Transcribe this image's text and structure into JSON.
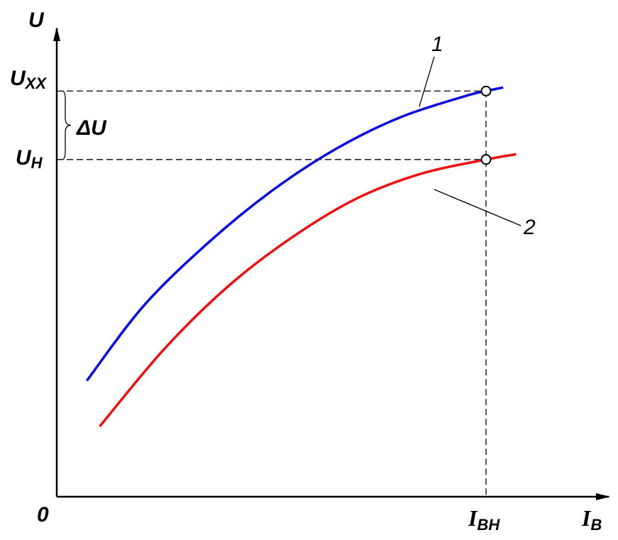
{
  "chart_data": {
    "type": "line",
    "title": "",
    "xlabel": {
      "main": "I",
      "sub": "B"
    },
    "ylabel": "U",
    "origin_label": "0",
    "xlim": [
      0,
      1.3
    ],
    "ylim": [
      0,
      1.3
    ],
    "grid": false,
    "legend": "none",
    "series": [
      {
        "name": "1",
        "color": "#0a0adc",
        "x": [
          0.07,
          0.2,
          0.35,
          0.5,
          0.65,
          0.8,
          0.95,
          1.0,
          1.04
        ],
        "y": [
          0.33,
          0.54,
          0.72,
          0.87,
          0.99,
          1.08,
          1.14,
          1.155,
          1.165
        ]
      },
      {
        "name": "2",
        "color": "#e81010",
        "x": [
          0.1,
          0.25,
          0.4,
          0.55,
          0.7,
          0.85,
          1.0,
          1.07
        ],
        "y": [
          0.2,
          0.42,
          0.6,
          0.74,
          0.85,
          0.92,
          0.96,
          0.975
        ]
      }
    ],
    "reference_lines": {
      "u_xx": {
        "label_main": "U",
        "label_sub": "XX",
        "value": 1.155
      },
      "u_n": {
        "label_main": "U",
        "label_sub": "H",
        "value": 0.96
      },
      "i_vn": {
        "label_main": "I",
        "label_sub": "BH",
        "value": 1.0
      }
    },
    "delta_label": "ΔU",
    "markers": [
      {
        "x": 1.0,
        "y": 1.155
      },
      {
        "x": 1.0,
        "y": 0.96
      }
    ]
  }
}
